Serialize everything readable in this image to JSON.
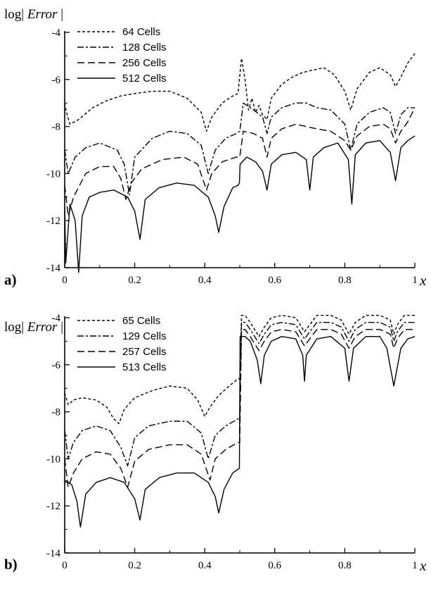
{
  "chart_data": [
    {
      "type": "line",
      "panel_label": "a)",
      "ylabel_prefix": "log| ",
      "ylabel_var": "Error",
      "ylabel_suffix": " |",
      "xlabel": "x",
      "xlim": [
        0,
        1
      ],
      "ylim": [
        -14,
        -4
      ],
      "xticks": [
        0,
        0.2,
        0.4,
        0.6,
        0.8,
        1
      ],
      "xtick_labels": [
        "0",
        "0.2",
        "0.4",
        "0.6",
        "0.8",
        "1"
      ],
      "yticks": [
        -4,
        -6,
        -8,
        -10,
        -12,
        -14
      ],
      "ytick_labels": [
        "-4",
        "-6",
        "-8",
        "-10",
        "-12",
        "-14"
      ],
      "legend_position": "top-left",
      "series": [
        {
          "name": "64 Cells",
          "style": "dotted",
          "x": [
            0.0,
            0.005,
            0.015,
            0.04,
            0.08,
            0.12,
            0.16,
            0.2,
            0.25,
            0.3,
            0.35,
            0.39,
            0.405,
            0.42,
            0.45,
            0.48,
            0.495,
            0.505,
            0.515,
            0.525,
            0.535,
            0.545,
            0.555,
            0.565,
            0.578,
            0.59,
            0.62,
            0.65,
            0.68,
            0.71,
            0.74,
            0.77,
            0.8,
            0.817,
            0.835,
            0.87,
            0.9,
            0.93,
            0.945,
            0.96,
            0.98,
            1.0
          ],
          "y": [
            -7.0,
            -7.4,
            -7.9,
            -7.7,
            -7.2,
            -6.9,
            -6.7,
            -6.6,
            -6.5,
            -6.5,
            -6.8,
            -7.4,
            -8.2,
            -7.6,
            -7.0,
            -6.7,
            -6.6,
            -5.1,
            -6.0,
            -7.3,
            -6.8,
            -7.4,
            -7.1,
            -7.5,
            -7.7,
            -6.8,
            -6.2,
            -5.9,
            -5.7,
            -5.6,
            -5.5,
            -5.8,
            -6.5,
            -7.3,
            -6.4,
            -5.7,
            -5.5,
            -5.8,
            -6.3,
            -5.9,
            -5.3,
            -4.9
          ]
        },
        {
          "name": "128 Cells",
          "style": "dash-dot",
          "x": [
            0.0,
            0.01,
            0.03,
            0.06,
            0.1,
            0.15,
            0.17,
            0.185,
            0.2,
            0.25,
            0.3,
            0.35,
            0.39,
            0.41,
            0.43,
            0.46,
            0.49,
            0.5,
            0.51,
            0.54,
            0.565,
            0.578,
            0.59,
            0.62,
            0.66,
            0.69,
            0.72,
            0.76,
            0.8,
            0.817,
            0.835,
            0.87,
            0.91,
            0.93,
            0.945,
            0.96,
            0.98,
            1.0
          ],
          "y": [
            -9.0,
            -10.0,
            -9.3,
            -8.9,
            -8.7,
            -9.0,
            -9.6,
            -10.9,
            -9.3,
            -8.5,
            -8.2,
            -8.3,
            -8.8,
            -10.0,
            -9.0,
            -8.5,
            -8.3,
            -8.2,
            -7.0,
            -7.3,
            -7.6,
            -8.3,
            -7.6,
            -7.2,
            -7.0,
            -7.0,
            -7.2,
            -7.3,
            -7.9,
            -9.0,
            -7.9,
            -7.4,
            -7.2,
            -7.4,
            -8.3,
            -7.5,
            -7.2,
            -7.2
          ]
        },
        {
          "name": "256 Cells",
          "style": "dashed",
          "x": [
            0.0,
            0.01,
            0.025,
            0.06,
            0.1,
            0.14,
            0.16,
            0.175,
            0.19,
            0.22,
            0.28,
            0.34,
            0.38,
            0.405,
            0.42,
            0.45,
            0.49,
            0.5,
            0.51,
            0.54,
            0.565,
            0.578,
            0.59,
            0.62,
            0.66,
            0.69,
            0.72,
            0.76,
            0.8,
            0.817,
            0.835,
            0.87,
            0.91,
            0.93,
            0.945,
            0.96,
            0.98,
            1.0
          ],
          "y": [
            -10.5,
            -11.8,
            -11.0,
            -10.0,
            -9.7,
            -9.7,
            -10.2,
            -11.1,
            -10.4,
            -9.8,
            -9.4,
            -9.3,
            -9.6,
            -10.7,
            -10.0,
            -9.5,
            -9.3,
            -9.3,
            -8.2,
            -8.3,
            -8.5,
            -9.3,
            -8.5,
            -8.1,
            -7.9,
            -8.0,
            -8.1,
            -8.2,
            -8.6,
            -9.0,
            -8.4,
            -8.0,
            -7.9,
            -8.1,
            -8.7,
            -8.2,
            -7.8,
            -7.2
          ]
        },
        {
          "name": "512 Cells",
          "style": "solid",
          "x": [
            0.0,
            0.003,
            0.015,
            0.03,
            0.04,
            0.05,
            0.07,
            0.1,
            0.14,
            0.18,
            0.2,
            0.215,
            0.23,
            0.27,
            0.32,
            0.37,
            0.41,
            0.43,
            0.44,
            0.455,
            0.48,
            0.495,
            0.499,
            0.501,
            0.52,
            0.545,
            0.565,
            0.578,
            0.59,
            0.62,
            0.66,
            0.69,
            0.7,
            0.71,
            0.74,
            0.78,
            0.81,
            0.82,
            0.83,
            0.86,
            0.9,
            0.93,
            0.945,
            0.96,
            0.98,
            1.0
          ],
          "y": [
            -11.5,
            -13.8,
            -11.3,
            -12.0,
            -14.2,
            -11.8,
            -11.0,
            -10.8,
            -10.7,
            -11.0,
            -11.6,
            -12.8,
            -11.1,
            -10.6,
            -10.4,
            -10.5,
            -11.0,
            -11.8,
            -12.5,
            -11.4,
            -10.6,
            -10.5,
            -10.4,
            -9.6,
            -9.3,
            -9.5,
            -9.9,
            -10.7,
            -9.6,
            -9.2,
            -9.1,
            -9.4,
            -10.7,
            -9.3,
            -8.9,
            -8.7,
            -9.4,
            -11.3,
            -9.2,
            -8.7,
            -8.6,
            -9.1,
            -10.3,
            -8.9,
            -8.6,
            -8.4
          ]
        }
      ]
    },
    {
      "type": "line",
      "panel_label": "b)",
      "ylabel_prefix": "log| ",
      "ylabel_var": "Error",
      "ylabel_suffix": " |",
      "xlabel": "x",
      "xlim": [
        0,
        1
      ],
      "ylim": [
        -14,
        -4
      ],
      "xticks": [
        0,
        0.2,
        0.4,
        0.6,
        0.8,
        1
      ],
      "xtick_labels": [
        "0",
        "0.2",
        "0.4",
        "0.6",
        "0.8",
        "1"
      ],
      "yticks": [
        -4,
        -6,
        -8,
        -10,
        -12,
        -14
      ],
      "ytick_labels": [
        "-4",
        "-6",
        "-8",
        "-10",
        "-12",
        "-14"
      ],
      "legend_position": "top-left",
      "series": [
        {
          "name": "65 Cells",
          "style": "dotted",
          "x": [
            0.0,
            0.01,
            0.025,
            0.05,
            0.09,
            0.12,
            0.14,
            0.155,
            0.17,
            0.2,
            0.25,
            0.3,
            0.35,
            0.38,
            0.4,
            0.415,
            0.44,
            0.47,
            0.495,
            0.5,
            0.505,
            0.515,
            0.53,
            0.555,
            0.57,
            0.59,
            0.62,
            0.66,
            0.685,
            0.7,
            0.72,
            0.76,
            0.79,
            0.812,
            0.83,
            0.86,
            0.9,
            0.93,
            0.94,
            0.95,
            0.97,
            1.0
          ],
          "y": [
            -7.2,
            -7.7,
            -7.5,
            -7.4,
            -7.5,
            -7.8,
            -8.3,
            -8.5,
            -7.9,
            -7.4,
            -7.1,
            -6.9,
            -7.0,
            -7.5,
            -8.2,
            -7.8,
            -7.3,
            -6.9,
            -6.6,
            -6.6,
            -3.9,
            -3.9,
            -4.2,
            -4.8,
            -4.4,
            -4.0,
            -3.9,
            -4.0,
            -4.6,
            -4.3,
            -3.9,
            -3.9,
            -4.1,
            -4.7,
            -4.2,
            -3.9,
            -3.9,
            -4.1,
            -4.7,
            -4.3,
            -3.9,
            -3.9
          ]
        },
        {
          "name": "129 Cells",
          "style": "dash-dot",
          "x": [
            0.0,
            0.01,
            0.025,
            0.05,
            0.09,
            0.13,
            0.16,
            0.18,
            0.2,
            0.24,
            0.3,
            0.35,
            0.39,
            0.41,
            0.43,
            0.46,
            0.495,
            0.5,
            0.505,
            0.515,
            0.53,
            0.555,
            0.57,
            0.59,
            0.62,
            0.66,
            0.685,
            0.7,
            0.72,
            0.76,
            0.79,
            0.812,
            0.83,
            0.86,
            0.9,
            0.93,
            0.94,
            0.95,
            0.97,
            1.0
          ],
          "y": [
            -8.8,
            -10.0,
            -9.3,
            -8.8,
            -8.6,
            -8.8,
            -9.5,
            -10.3,
            -9.1,
            -8.6,
            -8.4,
            -8.4,
            -8.9,
            -10.0,
            -9.0,
            -8.6,
            -8.3,
            -8.3,
            -4.2,
            -4.2,
            -4.5,
            -5.1,
            -4.7,
            -4.3,
            -4.2,
            -4.3,
            -4.9,
            -4.6,
            -4.2,
            -4.2,
            -4.4,
            -5.0,
            -4.5,
            -4.2,
            -4.2,
            -4.4,
            -5.0,
            -4.6,
            -4.2,
            -4.2
          ]
        },
        {
          "name": "257 Cells",
          "style": "dashed",
          "x": [
            0.0,
            0.01,
            0.025,
            0.05,
            0.09,
            0.13,
            0.16,
            0.18,
            0.2,
            0.24,
            0.3,
            0.35,
            0.39,
            0.415,
            0.43,
            0.46,
            0.495,
            0.5,
            0.505,
            0.515,
            0.53,
            0.555,
            0.57,
            0.59,
            0.62,
            0.66,
            0.685,
            0.7,
            0.72,
            0.76,
            0.79,
            0.812,
            0.83,
            0.86,
            0.9,
            0.93,
            0.94,
            0.95,
            0.97,
            1.0
          ],
          "y": [
            -10.0,
            -11.2,
            -10.6,
            -10.0,
            -9.7,
            -9.8,
            -10.4,
            -11.2,
            -10.1,
            -9.6,
            -9.4,
            -9.4,
            -9.8,
            -10.9,
            -10.0,
            -9.6,
            -9.3,
            -9.3,
            -4.5,
            -4.5,
            -4.8,
            -5.4,
            -5.0,
            -4.6,
            -4.5,
            -4.6,
            -5.2,
            -4.9,
            -4.5,
            -4.5,
            -4.7,
            -5.3,
            -4.8,
            -4.5,
            -4.5,
            -4.7,
            -5.3,
            -4.9,
            -4.5,
            -4.5
          ]
        },
        {
          "name": "513 Cells",
          "style": "solid",
          "x": [
            0.0,
            0.02,
            0.035,
            0.045,
            0.06,
            0.09,
            0.13,
            0.17,
            0.2,
            0.215,
            0.23,
            0.27,
            0.32,
            0.37,
            0.41,
            0.43,
            0.44,
            0.455,
            0.48,
            0.499,
            0.501,
            0.515,
            0.53,
            0.55,
            0.56,
            0.57,
            0.59,
            0.62,
            0.66,
            0.68,
            0.685,
            0.69,
            0.72,
            0.76,
            0.8,
            0.812,
            0.825,
            0.86,
            0.9,
            0.92,
            0.94,
            0.96,
            0.98,
            1.0
          ],
          "y": [
            -10.9,
            -11.1,
            -11.8,
            -12.9,
            -11.5,
            -11.0,
            -10.8,
            -11.0,
            -11.7,
            -12.6,
            -11.3,
            -10.8,
            -10.6,
            -10.6,
            -11.0,
            -11.6,
            -12.3,
            -11.3,
            -10.6,
            -10.4,
            -4.8,
            -4.8,
            -5.0,
            -5.8,
            -6.8,
            -5.6,
            -5.0,
            -4.8,
            -4.9,
            -5.6,
            -6.7,
            -5.6,
            -4.9,
            -4.8,
            -5.3,
            -6.7,
            -5.3,
            -4.8,
            -4.8,
            -5.3,
            -6.9,
            -5.3,
            -4.9,
            -4.8
          ]
        }
      ]
    }
  ]
}
